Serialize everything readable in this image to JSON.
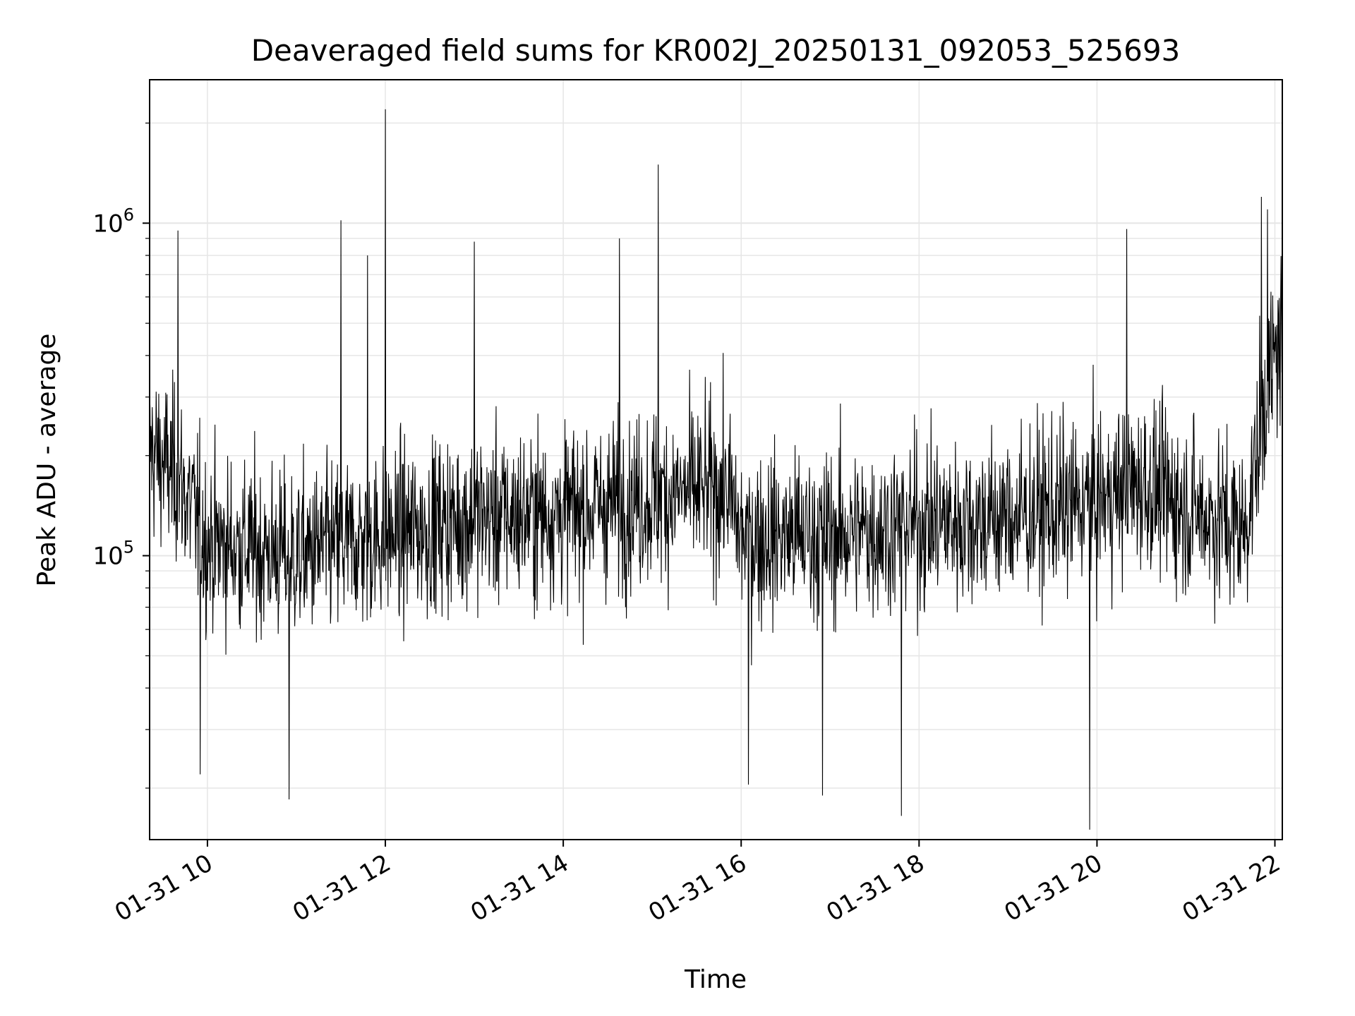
{
  "chart_data": {
    "type": "line",
    "title": "Deaveraged field sums for KR002J_20250131_092053_525693",
    "xlabel": "Time",
    "ylabel": "Peak ADU - average",
    "x_range": [
      "2025-01-31 09:21",
      "2025-01-31 22:05"
    ],
    "ylim": [
      14000,
      2700000
    ],
    "yscale": "log",
    "grid": true,
    "grid_color": "#e6e6e6",
    "line_color": "#000000",
    "x_ticks": [
      "01-31 10",
      "01-31 12",
      "01-31 14",
      "01-31 16",
      "01-31 18",
      "01-31 20",
      "01-31 22"
    ],
    "y_ticks": [
      {
        "value": 100000,
        "base": "10",
        "exp": "5"
      },
      {
        "value": 1000000,
        "base": "10",
        "exp": "6"
      }
    ],
    "series": [
      {
        "trend": [
          [
            "2025-01-31 09:21",
            210000
          ],
          [
            "2025-01-31 09:40",
            170000
          ],
          [
            "2025-01-31 10:00",
            110000
          ],
          [
            "2025-01-31 11:00",
            100000
          ],
          [
            "2025-01-31 12:00",
            115000
          ],
          [
            "2025-01-31 13:00",
            130000
          ],
          [
            "2025-01-31 14:00",
            135000
          ],
          [
            "2025-01-31 15:00",
            150000
          ],
          [
            "2025-01-31 15:50",
            160000
          ],
          [
            "2025-01-31 16:00",
            115000
          ],
          [
            "2025-01-31 17:00",
            115000
          ],
          [
            "2025-01-31 18:00",
            125000
          ],
          [
            "2025-01-31 19:00",
            130000
          ],
          [
            "2025-01-31 20:00",
            145000
          ],
          [
            "2025-01-31 20:30",
            165000
          ],
          [
            "2025-01-31 21:00",
            140000
          ],
          [
            "2025-01-31 21:40",
            120000
          ],
          [
            "2025-01-31 21:55",
            320000
          ],
          [
            "2025-01-31 22:05",
            470000
          ]
        ],
        "spikes": [
          [
            "2025-01-31 09:40",
            950000
          ],
          [
            "2025-01-31 11:30",
            1020000
          ],
          [
            "2025-01-31 11:48",
            800000
          ],
          [
            "2025-01-31 12:00",
            2200000
          ],
          [
            "2025-01-31 13:00",
            880000
          ],
          [
            "2025-01-31 14:38",
            900000
          ],
          [
            "2025-01-31 15:04",
            1500000
          ],
          [
            "2025-01-31 20:20",
            960000
          ],
          [
            "2025-01-31 21:51",
            1200000
          ],
          [
            "2025-01-31 21:55",
            1100000
          ],
          [
            "2025-01-31 10:55",
            18500
          ],
          [
            "2025-01-31 17:48",
            16500
          ],
          [
            "2025-01-31 19:55",
            15000
          ],
          [
            "2025-01-31 09:55",
            22000
          ],
          [
            "2025-01-31 16:05",
            20500
          ],
          [
            "2025-01-31 16:55",
            19000
          ]
        ]
      }
    ]
  }
}
